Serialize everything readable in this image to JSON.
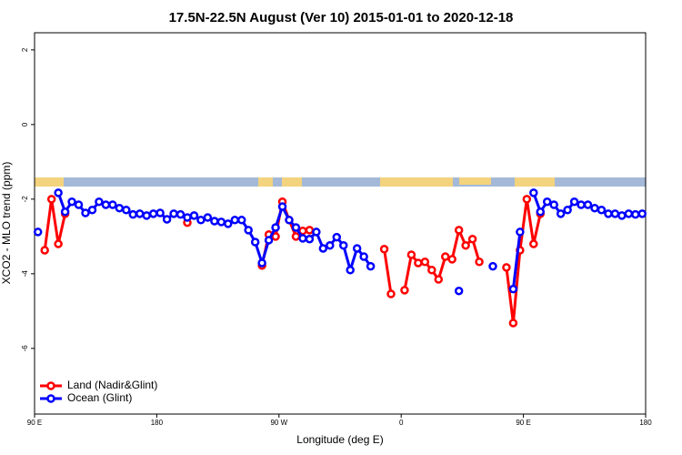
{
  "chart_data": {
    "type": "line",
    "title": "17.5N-22.5N August (Ver 10)   2015-01-01 to 2020-12-18",
    "x_label": "Longitude (deg E)",
    "y_label": "XCO2 - MLO trend (ppm)",
    "x": [
      92.5,
      97.5,
      102.5,
      107.5,
      112.5,
      117.5,
      122.5,
      127.5,
      132.5,
      137.5,
      142.5,
      147.5,
      152.5,
      157.5,
      162.5,
      167.5,
      172.5,
      177.5,
      182.5,
      187.5,
      192.5,
      197.5,
      202.5,
      207.5,
      212.5,
      217.5,
      222.5,
      227.5,
      232.5,
      237.5,
      242.5,
      247.5,
      252.5,
      257.5,
      262.5,
      267.5,
      272.5,
      277.5,
      282.5,
      287.5,
      292.5,
      297.5,
      302.5,
      307.5,
      312.5,
      317.5,
      322.5,
      327.5,
      332.5,
      337.5,
      342.5,
      347.5,
      352.5,
      357.5,
      362.5,
      367.5,
      372.5,
      377.5,
      382.5,
      387.5,
      392.5,
      397.5,
      402.5,
      407.5,
      412.5,
      417.5,
      422.5,
      427.5,
      432.5,
      437.5,
      442.5,
      447.5,
      452.5,
      457.5,
      462.5,
      467.5,
      472.5,
      477.5,
      482.5,
      487.5,
      492.5,
      497.5,
      502.5,
      507.5,
      512.5,
      517.5,
      522.5,
      527.5,
      532.5,
      537.5
    ],
    "series": [
      {
        "name": "Land (Nadir&Glint)",
        "color": "#ff0000",
        "values": [
          null,
          -3.37,
          -2.0,
          -3.2,
          -2.39,
          null,
          null,
          null,
          null,
          null,
          null,
          null,
          null,
          null,
          null,
          null,
          null,
          null,
          null,
          null,
          null,
          null,
          -2.63,
          null,
          null,
          null,
          null,
          null,
          null,
          null,
          null,
          null,
          null,
          -3.78,
          -2.95,
          -3.0,
          -2.07,
          -2.56,
          -3.0,
          -2.85,
          -2.83,
          null,
          null,
          null,
          null,
          null,
          null,
          null,
          null,
          null,
          null,
          -3.34,
          -4.54,
          null,
          -4.44,
          -3.49,
          -3.71,
          -3.68,
          -3.9,
          -4.15,
          -3.54,
          -3.61,
          -2.83,
          -3.24,
          -3.07,
          -3.68,
          null,
          null,
          null,
          -3.83,
          -5.32,
          -3.37,
          -2.0,
          -3.2,
          -2.39,
          null,
          null,
          null,
          null,
          null,
          null,
          null,
          null,
          null,
          null,
          null,
          null,
          null,
          null,
          null
        ]
      },
      {
        "name": "Ocean (Glint)",
        "color": "#0000ff",
        "values": [
          -2.88,
          null,
          null,
          -1.83,
          -2.34,
          -2.07,
          -2.15,
          -2.37,
          -2.29,
          -2.07,
          -2.15,
          -2.15,
          -2.24,
          -2.29,
          -2.41,
          -2.39,
          -2.44,
          -2.39,
          -2.37,
          -2.54,
          -2.39,
          -2.41,
          -2.49,
          -2.44,
          -2.56,
          -2.49,
          -2.59,
          -2.61,
          -2.66,
          -2.56,
          -2.56,
          -2.83,
          -3.15,
          -3.71,
          -3.1,
          -2.76,
          -2.2,
          -2.56,
          -2.76,
          -3.05,
          -3.07,
          -2.88,
          -3.32,
          -3.24,
          -3.02,
          -3.24,
          -3.9,
          -3.32,
          -3.54,
          -3.8,
          null,
          null,
          null,
          null,
          null,
          null,
          null,
          null,
          null,
          null,
          null,
          null,
          -4.46,
          null,
          null,
          null,
          null,
          -3.8,
          null,
          null,
          -4.41,
          -2.88,
          null,
          -1.83,
          -2.34,
          -2.07,
          -2.15,
          -2.39,
          -2.29,
          -2.07,
          -2.15,
          -2.15,
          -2.24,
          -2.29,
          -2.39,
          -2.39,
          -2.44,
          -2.39,
          -2.41,
          -2.39
        ]
      }
    ],
    "xlim": [
      90,
      540
    ],
    "xticks": [
      {
        "value": 90,
        "label": "90 E"
      },
      180,
      {
        "value": 270,
        "label": "90 W"
      },
      {
        "value": 360,
        "label": "0"
      },
      {
        "value": 450,
        "label": "90 E"
      },
      {
        "value": 540,
        "label": "180"
      }
    ],
    "ylim": [
      -7.76,
      2.46
    ],
    "yticks": [
      -6,
      -4,
      -2,
      0,
      2
    ],
    "legend": "bottom-left"
  }
}
